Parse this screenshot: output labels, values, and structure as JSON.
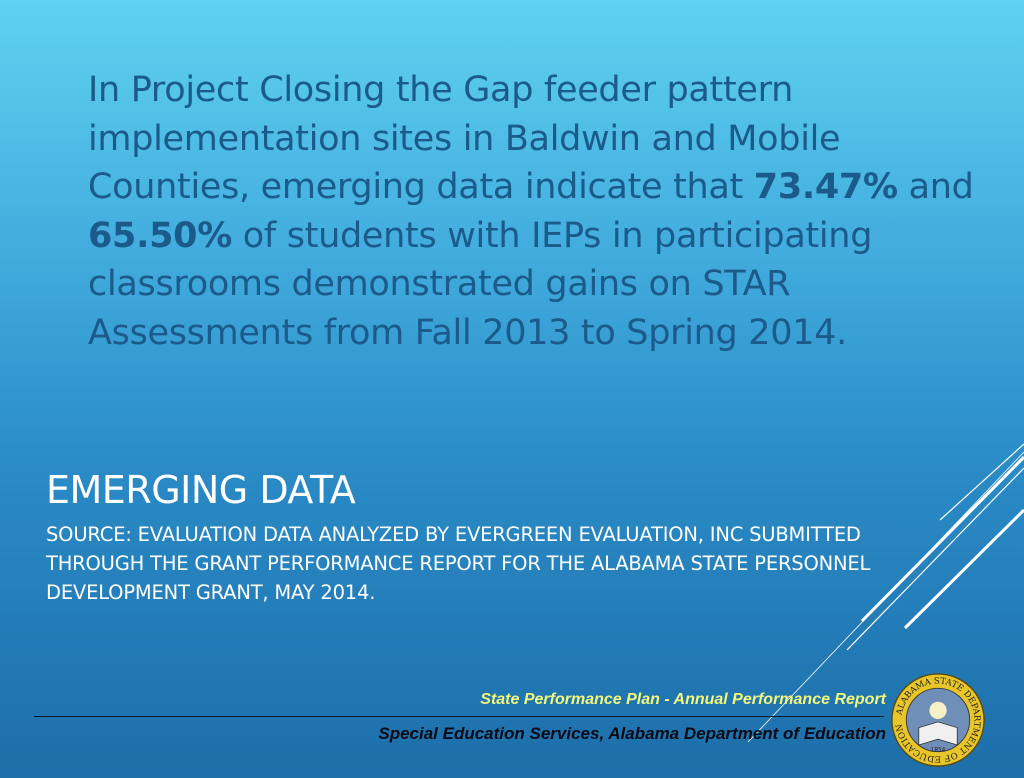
{
  "body": {
    "p1": "In Project Closing the Gap feeder pattern implementation sites in Baldwin and Mobile Counties, emerging data indicate that ",
    "pct1": "73.47%",
    "p2": " and ",
    "pct2": "65.50%",
    "p3": " of students with IEPs in participating classrooms demonstrated gains on STAR Assessments from Fall 2013 to Spring 2014."
  },
  "title": "EMERGING DATA",
  "source": "Source: Evaluation data analyzed by Evergreen Evaluation, Inc submitted through the Grant Performance Report for the Alabama State Personnel Development Grant, May 2014.",
  "footer": {
    "line1": "State Performance Plan - Annual Performance Report",
    "line2": "Special Education Services, Alabama Department of Education"
  },
  "seal": {
    "text": "ALABAMA STATE DEPARTMENT OF EDUCATION",
    "year": "1854"
  },
  "colors": {
    "body_text": "#1b5a8a",
    "footer_yellow": "#f3f77a",
    "seal_gold": "#e8c62a"
  }
}
